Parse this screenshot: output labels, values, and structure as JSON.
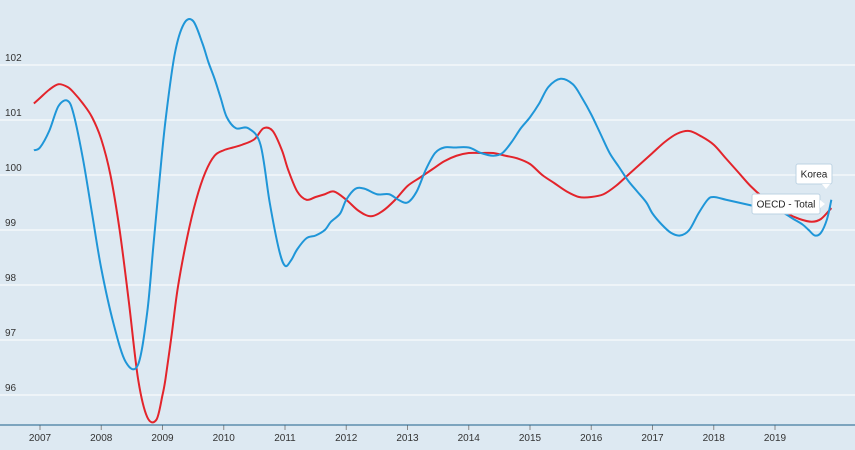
{
  "chart_data": {
    "type": "line",
    "x_start": 2006.9,
    "x_end": 2019.92,
    "ylim": [
      95.45,
      103.0
    ],
    "yticks": [
      96,
      97,
      98,
      99,
      100,
      101,
      102
    ],
    "xticks": [
      "2007",
      "2008",
      "2009",
      "2010",
      "2011",
      "2012",
      "2013",
      "2014",
      "2015",
      "2016",
      "2017",
      "2018",
      "2019"
    ],
    "grid": "horizontal",
    "series": [
      {
        "name": "Korea",
        "color": "#1f96d8",
        "x": [
          2006.9,
          2007.0,
          2007.15,
          2007.3,
          2007.45,
          2007.55,
          2007.7,
          2007.85,
          2008.0,
          2008.2,
          2008.4,
          2008.6,
          2008.75,
          2008.85,
          2008.95,
          2009.05,
          2009.2,
          2009.35,
          2009.5,
          2009.65,
          2009.75,
          2009.85,
          2009.95,
          2010.05,
          2010.2,
          2010.4,
          2010.6,
          2010.75,
          2010.9,
          2011.0,
          2011.1,
          2011.2,
          2011.35,
          2011.5,
          2011.65,
          2011.75,
          2011.9,
          2012.0,
          2012.15,
          2012.3,
          2012.5,
          2012.7,
          2012.85,
          2013.0,
          2013.15,
          2013.3,
          2013.45,
          2013.6,
          2013.75,
          2014.0,
          2014.2,
          2014.4,
          2014.55,
          2014.7,
          2014.85,
          2015.0,
          2015.15,
          2015.3,
          2015.5,
          2015.7,
          2015.85,
          2016.0,
          2016.15,
          2016.3,
          2016.45,
          2016.6,
          2016.75,
          2016.9,
          2017.0,
          2017.15,
          2017.3,
          2017.45,
          2017.6,
          2017.75,
          2017.9,
          2018.0,
          2018.2,
          2018.4,
          2018.6,
          2018.8,
          2019.0,
          2019.15,
          2019.3,
          2019.45,
          2019.55,
          2019.65,
          2019.75,
          2019.85,
          2019.92
        ],
        "values": [
          100.45,
          100.5,
          100.8,
          101.25,
          101.35,
          101.1,
          100.3,
          99.3,
          98.3,
          97.3,
          96.6,
          96.55,
          97.5,
          98.7,
          99.9,
          101.0,
          102.2,
          102.75,
          102.8,
          102.4,
          102.05,
          101.75,
          101.4,
          101.05,
          100.85,
          100.85,
          100.55,
          99.5,
          98.65,
          98.35,
          98.45,
          98.65,
          98.85,
          98.9,
          99.0,
          99.15,
          99.3,
          99.55,
          99.75,
          99.75,
          99.65,
          99.65,
          99.55,
          99.5,
          99.7,
          100.1,
          100.4,
          100.5,
          100.5,
          100.5,
          100.4,
          100.35,
          100.4,
          100.6,
          100.85,
          101.05,
          101.3,
          101.6,
          101.75,
          101.65,
          101.4,
          101.1,
          100.75,
          100.4,
          100.15,
          99.9,
          99.7,
          99.5,
          99.3,
          99.1,
          98.95,
          98.9,
          99.0,
          99.3,
          99.55,
          99.6,
          99.55,
          99.5,
          99.45,
          99.4,
          99.35,
          99.3,
          99.2,
          99.1,
          99.0,
          98.9,
          98.95,
          99.2,
          99.55
        ],
        "label": "Korea"
      },
      {
        "name": "OECD - Total",
        "color": "#e3242b",
        "x": [
          2006.9,
          2007.0,
          2007.15,
          2007.3,
          2007.45,
          2007.55,
          2007.7,
          2007.85,
          2008.0,
          2008.15,
          2008.3,
          2008.45,
          2008.6,
          2008.75,
          2008.9,
          2009.0,
          2009.05,
          2009.15,
          2009.25,
          2009.4,
          2009.55,
          2009.7,
          2009.85,
          2010.0,
          2010.15,
          2010.3,
          2010.5,
          2010.65,
          2010.8,
          2010.95,
          2011.05,
          2011.2,
          2011.35,
          2011.5,
          2011.65,
          2011.8,
          2012.0,
          2012.2,
          2012.4,
          2012.6,
          2012.8,
          2013.0,
          2013.2,
          2013.4,
          2013.6,
          2013.8,
          2014.0,
          2014.2,
          2014.4,
          2014.6,
          2014.8,
          2015.0,
          2015.2,
          2015.4,
          2015.6,
          2015.8,
          2016.0,
          2016.2,
          2016.4,
          2016.6,
          2016.8,
          2017.0,
          2017.2,
          2017.4,
          2017.6,
          2017.8,
          2018.0,
          2018.2,
          2018.4,
          2018.6,
          2018.8,
          2019.0,
          2019.2,
          2019.4,
          2019.6,
          2019.75,
          2019.92
        ],
        "values": [
          101.3,
          101.4,
          101.55,
          101.65,
          101.6,
          101.5,
          101.3,
          101.05,
          100.65,
          100.0,
          99.0,
          97.7,
          96.3,
          95.6,
          95.55,
          96.0,
          96.3,
          97.1,
          97.95,
          98.85,
          99.55,
          100.05,
          100.35,
          100.45,
          100.5,
          100.55,
          100.65,
          100.85,
          100.8,
          100.45,
          100.1,
          99.7,
          99.55,
          99.6,
          99.65,
          99.7,
          99.55,
          99.35,
          99.25,
          99.35,
          99.55,
          99.8,
          99.95,
          100.1,
          100.25,
          100.35,
          100.4,
          100.4,
          100.4,
          100.35,
          100.3,
          100.2,
          100.0,
          99.85,
          99.7,
          99.6,
          99.6,
          99.65,
          99.8,
          100.0,
          100.2,
          100.4,
          100.6,
          100.75,
          100.8,
          100.7,
          100.55,
          100.3,
          100.05,
          99.8,
          99.6,
          99.45,
          99.3,
          99.2,
          99.15,
          99.2,
          99.4
        ],
        "label": "OECD - Total"
      }
    ]
  }
}
